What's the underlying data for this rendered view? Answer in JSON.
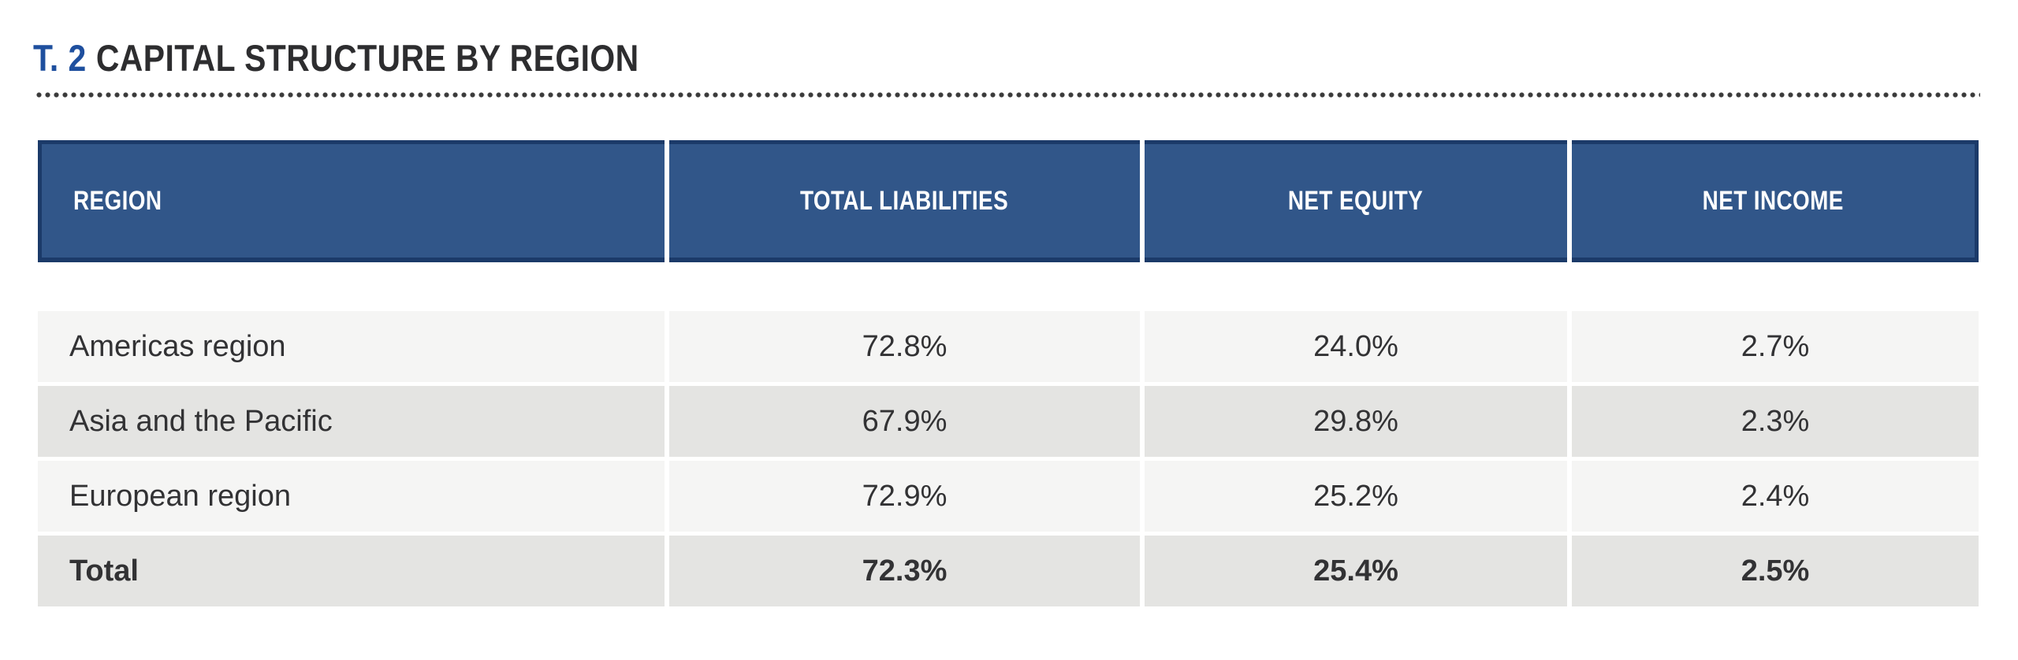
{
  "title": {
    "tag": "T. 2",
    "text": "CAPITAL STRUCTURE BY REGION"
  },
  "table": {
    "columns": [
      "REGION",
      "TOTAL LIABILITIES",
      "NET EQUITY",
      "NET INCOME"
    ],
    "rows": [
      {
        "region": "Americas region",
        "total_liabilities": "72.8%",
        "net_equity": "24.0%",
        "net_income": "2.7%"
      },
      {
        "region": "Asia and the Pacific",
        "total_liabilities": "67.9%",
        "net_equity": "29.8%",
        "net_income": "2.3%"
      },
      {
        "region": "European region",
        "total_liabilities": "72.9%",
        "net_equity": "25.2%",
        "net_income": "2.4%"
      },
      {
        "region": "Total",
        "total_liabilities": "72.3%",
        "net_equity": "25.4%",
        "net_income": "2.5%"
      }
    ]
  },
  "colors": {
    "header_bg": "#315689",
    "header_border": "#1B3A69",
    "header_text": "#FFFFFF",
    "title_accent": "#1E4F9E",
    "title_text": "#2D2D2F",
    "row_light": "#F5F5F4",
    "row_dark": "#E4E4E2",
    "cell_text": "#323234",
    "dot_color": "#3B3B3B"
  }
}
